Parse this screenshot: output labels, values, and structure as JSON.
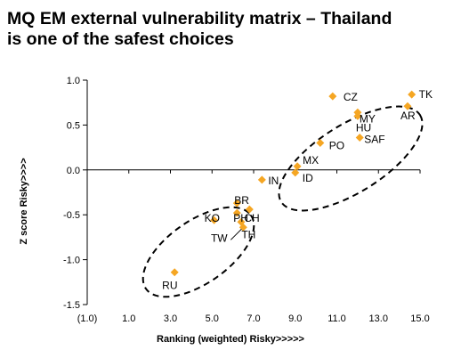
{
  "title_line1": "MQ EM external vulnerability matrix – Thailand",
  "title_line2": "is one of the safest choices",
  "chart_data": {
    "type": "scatter",
    "xlabel": "Ranking (weighted)  Risky>>>>>",
    "ylabel": "Z score  Risky>>>>",
    "xlim": [
      -1,
      15
    ],
    "ylim": [
      -1.5,
      1.0
    ],
    "x_ticks": [
      "(1.0)",
      "1.0",
      "3.0",
      "5.0",
      "7.0",
      "9.0",
      "11.0",
      "13.0",
      "15.0"
    ],
    "y_ticks": [
      "1.0",
      "0.5",
      "0.0",
      "-0.5",
      "-1.0",
      "-1.5"
    ],
    "marker_color": "#F5A623",
    "points": [
      {
        "label": "TK",
        "x": 14.6,
        "y": 0.84
      },
      {
        "label": "AR",
        "x": 14.4,
        "y": 0.71
      },
      {
        "label": "CZ",
        "x": 10.8,
        "y": 0.82
      },
      {
        "label": "MY",
        "x": 12.0,
        "y": 0.64
      },
      {
        "label": "HU",
        "x": 12.0,
        "y": 0.6
      },
      {
        "label": "SAF",
        "x": 12.1,
        "y": 0.36
      },
      {
        "label": "PO",
        "x": 10.2,
        "y": 0.3
      },
      {
        "label": "MX",
        "x": 9.1,
        "y": 0.04
      },
      {
        "label": "ID",
        "x": 9.0,
        "y": -0.03
      },
      {
        "label": "IN",
        "x": 7.4,
        "y": -0.11
      },
      {
        "label": "KO",
        "x": 5.1,
        "y": -0.56
      },
      {
        "label": "BR",
        "x": 6.2,
        "y": -0.37
      },
      {
        "label": "PH",
        "x": 6.2,
        "y": -0.48
      },
      {
        "label": "CH",
        "x": 6.8,
        "y": -0.44
      },
      {
        "label": "TW",
        "x": 6.4,
        "y": -0.58
      },
      {
        "label": "TH",
        "x": 6.5,
        "y": -0.64
      },
      {
        "label": "RU",
        "x": 3.2,
        "y": -1.14
      }
    ]
  }
}
